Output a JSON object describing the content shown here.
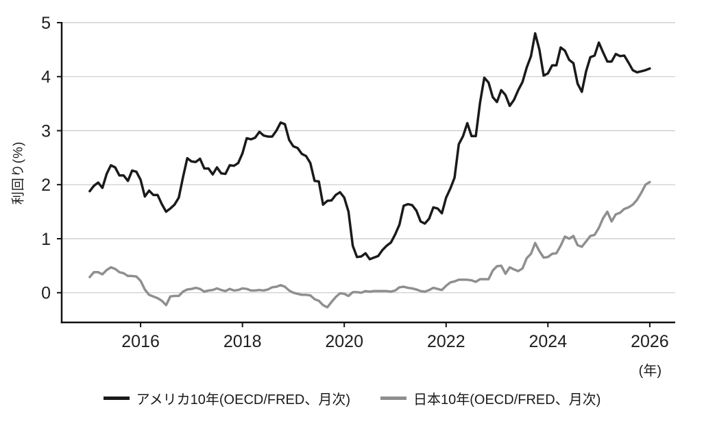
{
  "chart_data": {
    "type": "line",
    "title": "",
    "ylabel": "利回り(%)",
    "xlabel": "(年)",
    "x_frequency": "monthly",
    "x_start_year": 2015,
    "x_ticks": [
      2016,
      2018,
      2020,
      2022,
      2024,
      2026
    ],
    "y_ticks": [
      0,
      1,
      2,
      3,
      4,
      5
    ],
    "xlim": [
      2014.45,
      2026.5
    ],
    "ylim": [
      -0.55,
      5
    ],
    "grid": "horizontal",
    "legend_position": "bottom",
    "series": [
      {
        "name": "アメリカ10年(OECD/FRED、月次)",
        "color": "#1a1a1a",
        "values": [
          1.88,
          1.98,
          2.04,
          1.94,
          2.2,
          2.36,
          2.32,
          2.17,
          2.17,
          2.07,
          2.26,
          2.24,
          2.09,
          1.78,
          1.89,
          1.81,
          1.81,
          1.64,
          1.5,
          1.56,
          1.63,
          1.76,
          2.14,
          2.49,
          2.43,
          2.42,
          2.48,
          2.3,
          2.3,
          2.19,
          2.32,
          2.21,
          2.2,
          2.36,
          2.35,
          2.4,
          2.58,
          2.86,
          2.84,
          2.87,
          2.98,
          2.91,
          2.89,
          2.89,
          3.0,
          3.15,
          3.12,
          2.83,
          2.71,
          2.68,
          2.57,
          2.53,
          2.4,
          2.07,
          2.06,
          1.63,
          1.7,
          1.71,
          1.81,
          1.86,
          1.76,
          1.5,
          0.87,
          0.66,
          0.67,
          0.73,
          0.62,
          0.65,
          0.68,
          0.79,
          0.87,
          0.93,
          1.08,
          1.26,
          1.61,
          1.64,
          1.62,
          1.52,
          1.32,
          1.28,
          1.37,
          1.58,
          1.56,
          1.47,
          1.76,
          1.93,
          2.13,
          2.75,
          2.9,
          3.14,
          2.9,
          2.9,
          3.52,
          3.98,
          3.89,
          3.62,
          3.53,
          3.75,
          3.66,
          3.46,
          3.57,
          3.75,
          3.9,
          4.17,
          4.38,
          4.8,
          4.5,
          4.02,
          4.06,
          4.21,
          4.21,
          4.54,
          4.48,
          4.31,
          4.25,
          3.87,
          3.72,
          4.1,
          4.36,
          4.39,
          4.63,
          4.45,
          4.28,
          4.28,
          4.42,
          4.38,
          4.39,
          4.26,
          4.12,
          4.08,
          4.1,
          4.12,
          4.15
        ]
      },
      {
        "name": "日本10年(OECD/FRED、月次)",
        "color": "#8f8f8f",
        "values": [
          0.29,
          0.38,
          0.38,
          0.34,
          0.42,
          0.47,
          0.44,
          0.38,
          0.36,
          0.31,
          0.31,
          0.3,
          0.22,
          0.06,
          -0.04,
          -0.07,
          -0.1,
          -0.15,
          -0.23,
          -0.07,
          -0.06,
          -0.06,
          0.02,
          0.06,
          0.07,
          0.09,
          0.07,
          0.02,
          0.04,
          0.05,
          0.08,
          0.05,
          0.03,
          0.07,
          0.04,
          0.05,
          0.08,
          0.07,
          0.04,
          0.04,
          0.05,
          0.04,
          0.06,
          0.1,
          0.11,
          0.14,
          0.11,
          0.04,
          0.0,
          -0.02,
          -0.04,
          -0.04,
          -0.05,
          -0.12,
          -0.15,
          -0.23,
          -0.27,
          -0.17,
          -0.08,
          -0.01,
          -0.02,
          -0.06,
          0.01,
          0.01,
          0.0,
          0.03,
          0.02,
          0.03,
          0.03,
          0.03,
          0.03,
          0.02,
          0.04,
          0.1,
          0.11,
          0.09,
          0.08,
          0.06,
          0.03,
          0.02,
          0.05,
          0.09,
          0.07,
          0.05,
          0.13,
          0.19,
          0.21,
          0.24,
          0.24,
          0.24,
          0.23,
          0.2,
          0.25,
          0.25,
          0.25,
          0.41,
          0.49,
          0.5,
          0.35,
          0.47,
          0.43,
          0.4,
          0.45,
          0.64,
          0.72,
          0.92,
          0.77,
          0.65,
          0.66,
          0.72,
          0.73,
          0.87,
          1.04,
          1.0,
          1.05,
          0.88,
          0.85,
          0.95,
          1.05,
          1.07,
          1.2,
          1.38,
          1.5,
          1.32,
          1.45,
          1.48,
          1.55,
          1.58,
          1.63,
          1.72,
          1.85,
          2.0,
          2.05
        ]
      }
    ]
  }
}
